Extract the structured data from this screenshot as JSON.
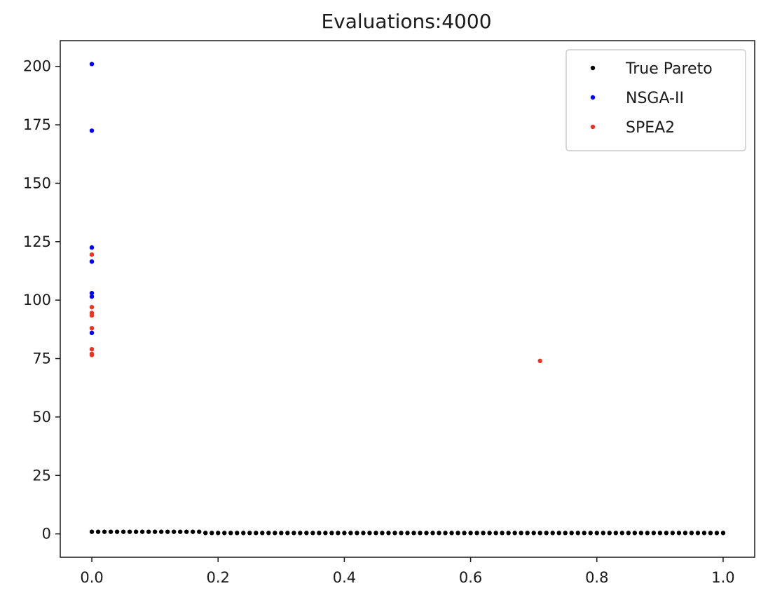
{
  "chart_data": {
    "type": "scatter",
    "title": "Evaluations:4000",
    "xlabel": "",
    "ylabel": "",
    "xlim": [
      -0.05,
      1.05
    ],
    "ylim": [
      -10,
      211
    ],
    "x_ticks": [
      0.0,
      0.2,
      0.4,
      0.6,
      0.8,
      1.0
    ],
    "x_tick_labels": [
      "0.0",
      "0.2",
      "0.4",
      "0.6",
      "0.8",
      "1.0"
    ],
    "y_ticks": [
      0,
      25,
      50,
      75,
      100,
      125,
      150,
      175,
      200
    ],
    "y_tick_labels": [
      "0",
      "25",
      "50",
      "75",
      "100",
      "125",
      "150",
      "175",
      "200"
    ],
    "grid": false,
    "legend_position": "top-right",
    "series": [
      {
        "name": "True Pareto",
        "color": "#000000",
        "x": [
          0.0,
          0.01,
          0.02,
          0.03,
          0.04,
          0.05,
          0.06,
          0.07,
          0.08,
          0.09,
          0.1,
          0.11,
          0.12,
          0.13,
          0.14,
          0.15,
          0.16,
          0.17,
          0.18,
          0.19,
          0.2,
          0.21,
          0.22,
          0.23,
          0.24,
          0.25,
          0.26,
          0.27,
          0.28,
          0.29,
          0.3,
          0.31,
          0.32,
          0.33,
          0.34,
          0.35,
          0.36,
          0.37,
          0.38,
          0.39,
          0.4,
          0.41,
          0.42,
          0.43,
          0.44,
          0.45,
          0.46,
          0.47,
          0.48,
          0.49,
          0.5,
          0.51,
          0.52,
          0.53,
          0.54,
          0.55,
          0.56,
          0.57,
          0.58,
          0.59,
          0.6,
          0.61,
          0.62,
          0.63,
          0.64,
          0.65,
          0.66,
          0.67,
          0.68,
          0.69,
          0.7,
          0.71,
          0.72,
          0.73,
          0.74,
          0.75,
          0.76,
          0.77,
          0.78,
          0.79,
          0.8,
          0.81,
          0.82,
          0.83,
          0.84,
          0.85,
          0.86,
          0.87,
          0.88,
          0.89,
          0.9,
          0.91,
          0.92,
          0.93,
          0.94,
          0.95,
          0.96,
          0.97,
          0.98,
          0.99,
          1.0
        ],
        "y": [
          0.9,
          0.9,
          0.9,
          0.9,
          0.9,
          0.9,
          0.9,
          0.9,
          0.9,
          0.9,
          0.9,
          0.9,
          0.9,
          0.9,
          0.9,
          0.9,
          0.9,
          0.9,
          0.4,
          0.4,
          0.4,
          0.4,
          0.4,
          0.4,
          0.4,
          0.4,
          0.4,
          0.4,
          0.4,
          0.4,
          0.4,
          0.4,
          0.4,
          0.4,
          0.4,
          0.4,
          0.4,
          0.4,
          0.4,
          0.4,
          0.4,
          0.4,
          0.4,
          0.4,
          0.4,
          0.4,
          0.4,
          0.4,
          0.4,
          0.4,
          0.4,
          0.4,
          0.4,
          0.4,
          0.4,
          0.4,
          0.4,
          0.4,
          0.4,
          0.4,
          0.4,
          0.4,
          0.4,
          0.4,
          0.4,
          0.4,
          0.4,
          0.4,
          0.4,
          0.4,
          0.4,
          0.4,
          0.4,
          0.4,
          0.4,
          0.4,
          0.4,
          0.4,
          0.4,
          0.4,
          0.4,
          0.4,
          0.4,
          0.4,
          0.4,
          0.4,
          0.4,
          0.4,
          0.4,
          0.4,
          0.4,
          0.4,
          0.4,
          0.4,
          0.4,
          0.4,
          0.4,
          0.4,
          0.4,
          0.4,
          0.4
        ]
      },
      {
        "name": "NSGA-II",
        "color": "#0000ff",
        "x": [
          0.0,
          0.0,
          0.0,
          0.0,
          0.0,
          0.0,
          0.0
        ],
        "y": [
          201,
          172.5,
          122.5,
          116.5,
          103,
          101.5,
          86
        ]
      },
      {
        "name": "SPEA2",
        "color": "#ee3322",
        "x": [
          0.0,
          0.0,
          0.0,
          0.0,
          0.0,
          0.0,
          0.0,
          0.0,
          0.0,
          0.71
        ],
        "y": [
          119.5,
          97,
          94.5,
          93.5,
          93.5,
          88,
          79,
          77,
          76.5,
          74
        ]
      }
    ]
  }
}
